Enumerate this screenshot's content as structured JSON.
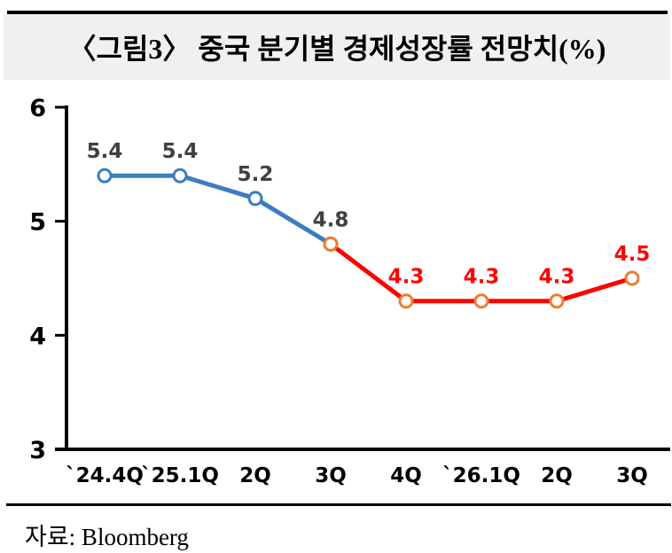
{
  "title": "〈그림3〉 중국 분기별 경제성장률 전망치(%)",
  "source": "자료: Bloomberg",
  "colors": {
    "actual_line": "#3c7dbf",
    "forecast_line": "#fe0000",
    "forecast_marker": "#ed7d31",
    "actual_label": "#404040",
    "forecast_label": "#fe0000",
    "axis": "#000000",
    "title_bg": "#f0f0f0",
    "marker_fill": "#ffffff"
  },
  "chart_data": {
    "type": "line",
    "title": "〈그림3〉 중국 분기별 경제성장률 전망치(%)",
    "xlabel": "",
    "ylabel": "",
    "categories": [
      "`24.4Q",
      "`25.1Q",
      "2Q",
      "3Q",
      "4Q",
      "`26.1Q",
      "2Q",
      "3Q"
    ],
    "ylim": [
      3,
      6
    ],
    "yticks": [
      6,
      5,
      4,
      3
    ],
    "grid": false,
    "legend": "none",
    "series": [
      {
        "name": "actual",
        "color": "#3c7dbf",
        "marker_color": "#3c7dbf",
        "x_idx": [
          0,
          1,
          2,
          3
        ],
        "values": [
          5.4,
          5.4,
          5.2,
          4.8
        ]
      },
      {
        "name": "forecast",
        "color": "#fe0000",
        "marker_color": "#ed7d31",
        "x_idx": [
          3,
          4,
          5,
          6,
          7
        ],
        "values": [
          4.8,
          4.3,
          4.3,
          4.3,
          4.5
        ]
      }
    ],
    "point_labels": [
      {
        "idx": 0,
        "value": 5.4,
        "text": "5.4",
        "color": "#404040"
      },
      {
        "idx": 1,
        "value": 5.4,
        "text": "5.4",
        "color": "#404040"
      },
      {
        "idx": 2,
        "value": 5.2,
        "text": "5.2",
        "color": "#404040"
      },
      {
        "idx": 3,
        "value": 4.8,
        "text": "4.8",
        "color": "#404040"
      },
      {
        "idx": 4,
        "value": 4.3,
        "text": "4.3",
        "color": "#fe0000"
      },
      {
        "idx": 5,
        "value": 4.3,
        "text": "4.3",
        "color": "#fe0000"
      },
      {
        "idx": 6,
        "value": 4.3,
        "text": "4.3",
        "color": "#fe0000"
      },
      {
        "idx": 7,
        "value": 4.5,
        "text": "4.5",
        "color": "#fe0000"
      }
    ]
  }
}
